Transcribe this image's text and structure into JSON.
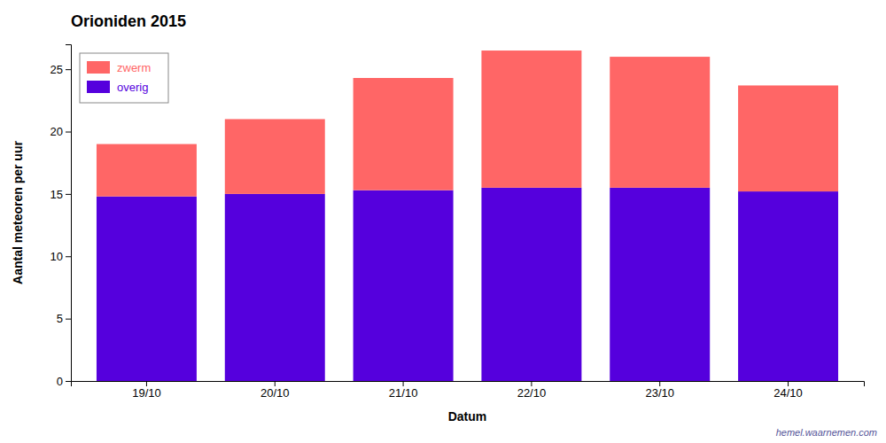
{
  "chart_data": {
    "type": "bar",
    "stacked": true,
    "title": "Orioniden 2015",
    "xlabel": "Datum",
    "ylabel": "Aantal meteoren per uur",
    "categories": [
      "19/10",
      "20/10",
      "21/10",
      "22/10",
      "23/10",
      "24/10"
    ],
    "series": [
      {
        "name": "overig",
        "color": "#5500dd",
        "values": [
          14.8,
          15.0,
          15.3,
          15.5,
          15.5,
          15.2
        ]
      },
      {
        "name": "zwerm",
        "color": "#ff6666",
        "values": [
          4.2,
          6.0,
          9.0,
          11.0,
          10.5,
          8.5
        ]
      }
    ],
    "ylim": [
      0,
      27
    ],
    "yticks": [
      0,
      5,
      10,
      15,
      20,
      25
    ],
    "legend": "upper left",
    "annotations": [
      "hemel.waarnemen.com"
    ]
  }
}
